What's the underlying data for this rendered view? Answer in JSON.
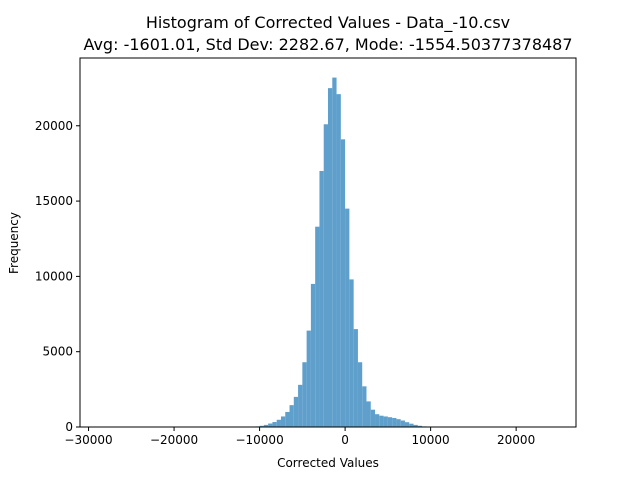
{
  "chart_data": {
    "type": "bar",
    "title": "Histogram of Corrected Values - Data_-10.csv",
    "subtitle": "Avg: -1601.01, Std Dev: 2282.67, Mode: -1554.50377378487",
    "xlabel": "Corrected Values",
    "ylabel": "Frequency",
    "xlim": [
      -31000,
      27000
    ],
    "ylim": [
      0,
      24500
    ],
    "x_ticks": [
      -30000,
      -20000,
      -10000,
      0,
      10000,
      20000
    ],
    "x_tick_labels": [
      "−30000",
      "−20000",
      "−10000",
      "0",
      "10000",
      "20000"
    ],
    "y_ticks": [
      0,
      5000,
      10000,
      15000,
      20000
    ],
    "y_tick_labels": [
      "0",
      "5000",
      "10000",
      "15000",
      "20000"
    ],
    "grid": false,
    "bar_color": "#5f9fcc",
    "bins": [
      {
        "x0": -11000,
        "x1": -10500,
        "value": 20
      },
      {
        "x0": -10500,
        "x1": -10000,
        "value": 40
      },
      {
        "x0": -10000,
        "x1": -9500,
        "value": 80
      },
      {
        "x0": -9500,
        "x1": -9000,
        "value": 140
      },
      {
        "x0": -9000,
        "x1": -8500,
        "value": 230
      },
      {
        "x0": -8500,
        "x1": -8000,
        "value": 330
      },
      {
        "x0": -8000,
        "x1": -7500,
        "value": 480
      },
      {
        "x0": -7500,
        "x1": -7000,
        "value": 700
      },
      {
        "x0": -7000,
        "x1": -6500,
        "value": 1000
      },
      {
        "x0": -6500,
        "x1": -6000,
        "value": 1450
      },
      {
        "x0": -6000,
        "x1": -5500,
        "value": 2000
      },
      {
        "x0": -5500,
        "x1": -5000,
        "value": 2800
      },
      {
        "x0": -5000,
        "x1": -4500,
        "value": 4300
      },
      {
        "x0": -4500,
        "x1": -4000,
        "value": 6400
      },
      {
        "x0": -4000,
        "x1": -3500,
        "value": 9500
      },
      {
        "x0": -3500,
        "x1": -3000,
        "value": 13300
      },
      {
        "x0": -3000,
        "x1": -2500,
        "value": 17000
      },
      {
        "x0": -2500,
        "x1": -2000,
        "value": 20100
      },
      {
        "x0": -2000,
        "x1": -1500,
        "value": 22500
      },
      {
        "x0": -1500,
        "x1": -1000,
        "value": 23200
      },
      {
        "x0": -1000,
        "x1": -500,
        "value": 22100
      },
      {
        "x0": -500,
        "x1": 0,
        "value": 19100
      },
      {
        "x0": 0,
        "x1": 500,
        "value": 14500
      },
      {
        "x0": 500,
        "x1": 1000,
        "value": 9800
      },
      {
        "x0": 1000,
        "x1": 1500,
        "value": 6500
      },
      {
        "x0": 1500,
        "x1": 2000,
        "value": 4300
      },
      {
        "x0": 2000,
        "x1": 2500,
        "value": 2700
      },
      {
        "x0": 2500,
        "x1": 3000,
        "value": 1700
      },
      {
        "x0": 3000,
        "x1": 3500,
        "value": 1150
      },
      {
        "x0": 3500,
        "x1": 4000,
        "value": 850
      },
      {
        "x0": 4000,
        "x1": 4500,
        "value": 750
      },
      {
        "x0": 4500,
        "x1": 5000,
        "value": 700
      },
      {
        "x0": 5000,
        "x1": 5500,
        "value": 650
      },
      {
        "x0": 5500,
        "x1": 6000,
        "value": 600
      },
      {
        "x0": 6000,
        "x1": 6500,
        "value": 520
      },
      {
        "x0": 6500,
        "x1": 7000,
        "value": 430
      },
      {
        "x0": 7000,
        "x1": 7500,
        "value": 320
      },
      {
        "x0": 7500,
        "x1": 8000,
        "value": 220
      },
      {
        "x0": 8000,
        "x1": 8500,
        "value": 140
      },
      {
        "x0": 8500,
        "x1": 9000,
        "value": 80
      },
      {
        "x0": 9000,
        "x1": 9500,
        "value": 40
      },
      {
        "x0": 9500,
        "x1": 10000,
        "value": 20
      }
    ]
  }
}
